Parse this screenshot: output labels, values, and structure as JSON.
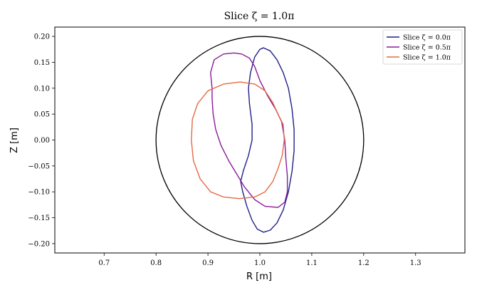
{
  "chart_data": {
    "type": "line",
    "title": "Slice ζ = 1.0π",
    "xlabel": "R [m]",
    "ylabel": "Z [m]",
    "xlim": [
      0.605,
      1.395
    ],
    "ylim": [
      -0.218,
      0.218
    ],
    "xticks": [
      0.7,
      0.8,
      0.9,
      1.0,
      1.1,
      1.2,
      1.3
    ],
    "xtick_labels": [
      "0.7",
      "0.8",
      "0.9",
      "1.0",
      "1.1",
      "1.2",
      "1.3"
    ],
    "yticks": [
      0.2,
      0.15,
      0.1,
      0.05,
      0.0,
      -0.05,
      -0.1,
      -0.15,
      -0.2
    ],
    "ytick_labels": [
      "0.20",
      "0.15",
      "0.10",
      "0.05",
      "0.00",
      "−0.05",
      "−0.10",
      "−0.15",
      "−0.20"
    ],
    "grid": false,
    "legend_position": "top-right",
    "boundary": {
      "color": "#000000",
      "center": [
        1.0,
        0.0
      ],
      "radius": 0.2
    },
    "series": [
      {
        "name": "Slice ζ = 0.0π",
        "color": "#1f1f8a",
        "points": [
          [
            1.007,
            0.178
          ],
          [
            1.02,
            0.172
          ],
          [
            1.033,
            0.155
          ],
          [
            1.045,
            0.13
          ],
          [
            1.055,
            0.1
          ],
          [
            1.062,
            0.06
          ],
          [
            1.066,
            0.02
          ],
          [
            1.066,
            -0.02
          ],
          [
            1.062,
            -0.06
          ],
          [
            1.055,
            -0.1
          ],
          [
            1.045,
            -0.135
          ],
          [
            1.033,
            -0.16
          ],
          [
            1.02,
            -0.174
          ],
          [
            1.007,
            -0.178
          ],
          [
            0.995,
            -0.172
          ],
          [
            0.985,
            -0.155
          ],
          [
            0.975,
            -0.128
          ],
          [
            0.967,
            -0.1
          ],
          [
            0.963,
            -0.08
          ],
          [
            0.968,
            -0.06
          ],
          [
            0.978,
            -0.03
          ],
          [
            0.985,
            0.0
          ],
          [
            0.985,
            0.03
          ],
          [
            0.98,
            0.07
          ],
          [
            0.978,
            0.1
          ],
          [
            0.982,
            0.13
          ],
          [
            0.99,
            0.16
          ],
          [
            1.0,
            0.175
          ],
          [
            1.007,
            0.178
          ]
        ]
      },
      {
        "name": "Slice ζ = 0.5π",
        "color": "#8b1a9c",
        "points": [
          [
            0.95,
            0.168
          ],
          [
            0.965,
            0.166
          ],
          [
            0.98,
            0.158
          ],
          [
            0.99,
            0.142
          ],
          [
            1.0,
            0.115
          ],
          [
            1.015,
            0.085
          ],
          [
            1.03,
            0.06
          ],
          [
            1.042,
            0.035
          ],
          [
            1.048,
            0.0
          ],
          [
            1.05,
            -0.035
          ],
          [
            1.053,
            -0.07
          ],
          [
            1.053,
            -0.1
          ],
          [
            1.048,
            -0.12
          ],
          [
            1.035,
            -0.13
          ],
          [
            1.01,
            -0.128
          ],
          [
            0.99,
            -0.115
          ],
          [
            0.97,
            -0.09
          ],
          [
            0.955,
            -0.065
          ],
          [
            0.94,
            -0.04
          ],
          [
            0.925,
            -0.01
          ],
          [
            0.915,
            0.02
          ],
          [
            0.91,
            0.05
          ],
          [
            0.908,
            0.08
          ],
          [
            0.908,
            0.1
          ],
          [
            0.905,
            0.13
          ],
          [
            0.912,
            0.155
          ],
          [
            0.93,
            0.166
          ],
          [
            0.95,
            0.168
          ]
        ]
      },
      {
        "name": "Slice ζ = 1.0π",
        "color": "#e56a45",
        "points": [
          [
            0.962,
            0.112
          ],
          [
            0.99,
            0.108
          ],
          [
            1.01,
            0.095
          ],
          [
            1.025,
            0.072
          ],
          [
            1.035,
            0.05
          ],
          [
            1.045,
            0.03
          ],
          [
            1.047,
            0.0
          ],
          [
            1.043,
            -0.03
          ],
          [
            1.035,
            -0.055
          ],
          [
            1.025,
            -0.08
          ],
          [
            1.01,
            -0.1
          ],
          [
            0.99,
            -0.11
          ],
          [
            0.96,
            -0.113
          ],
          [
            0.93,
            -0.11
          ],
          [
            0.905,
            -0.1
          ],
          [
            0.885,
            -0.075
          ],
          [
            0.872,
            -0.04
          ],
          [
            0.868,
            0.0
          ],
          [
            0.87,
            0.04
          ],
          [
            0.88,
            0.07
          ],
          [
            0.9,
            0.095
          ],
          [
            0.93,
            0.108
          ],
          [
            0.962,
            0.112
          ]
        ]
      }
    ]
  }
}
